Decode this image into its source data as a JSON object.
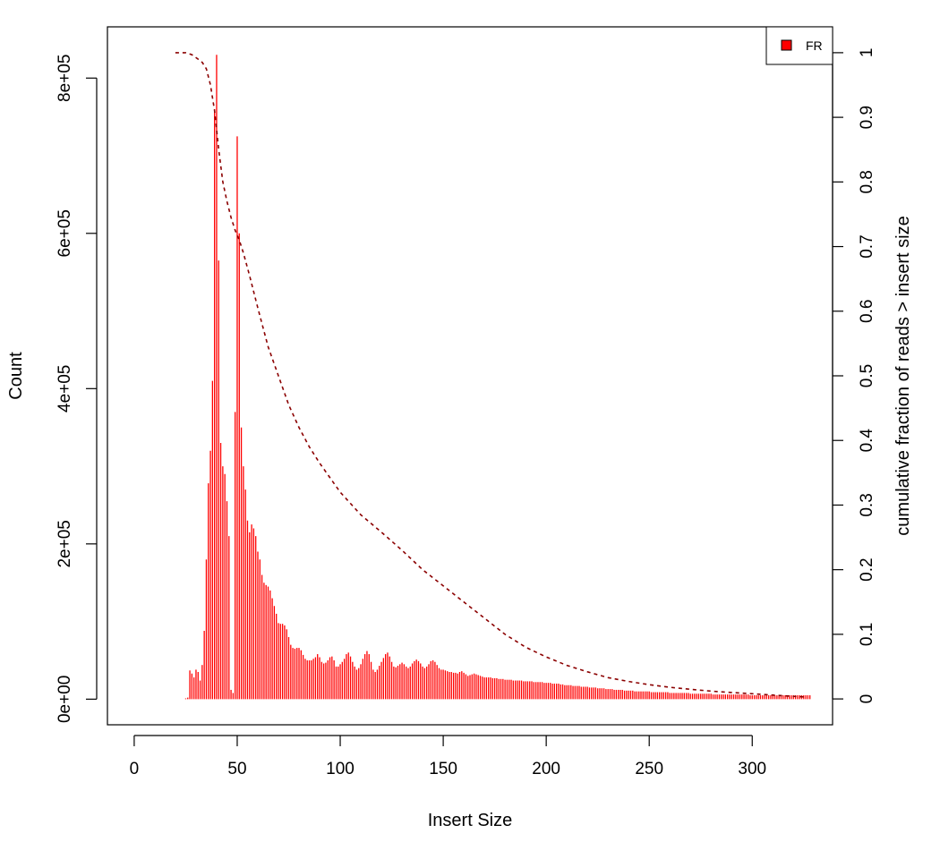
{
  "colors": {
    "bar": "#ff0000",
    "cumulative": "#8b0000",
    "axis": "#000000",
    "background": "#ffffff"
  },
  "chart_data": {
    "type": "bar",
    "xlabel": "Insert Size",
    "ylabel": "Count",
    "y2label": "cumulative fraction of reads > insert size",
    "xlim": [
      -13,
      339
    ],
    "ylim": [
      -33000,
      866000
    ],
    "y2lim": [
      -0.04,
      1.04
    ],
    "x_ticks": [
      "0",
      "50",
      "100",
      "150",
      "200",
      "250",
      "300"
    ],
    "y_ticks": [
      "0e+00",
      "2e+05",
      "4e+05",
      "6e+05",
      "8e+05"
    ],
    "y2_ticks": [
      "0",
      "0.1",
      "0.2",
      "0.3",
      "0.4",
      "0.5",
      "0.6",
      "0.7",
      "0.8",
      "0.9",
      "1"
    ],
    "legend": {
      "entries": [
        "FR"
      ],
      "position": "top-right"
    },
    "grid": false,
    "series": [
      {
        "name": "FR",
        "type": "bar",
        "x_start": 20,
        "values": [
          0,
          0,
          0,
          0,
          0,
          1000,
          2000,
          37000,
          33000,
          28000,
          38000,
          35000,
          24000,
          44000,
          88000,
          180000,
          278000,
          320000,
          410000,
          760000,
          830000,
          565000,
          330000,
          300000,
          290000,
          255000,
          210000,
          12000,
          8000,
          370000,
          725000,
          600000,
          350000,
          300000,
          270000,
          230000,
          215000,
          225000,
          220000,
          210000,
          190000,
          180000,
          160000,
          150000,
          147000,
          145000,
          140000,
          130000,
          120000,
          110000,
          98000,
          97000,
          97000,
          95000,
          90000,
          80000,
          70000,
          66000,
          65000,
          66000,
          66000,
          63000,
          57000,
          52000,
          50000,
          50000,
          50000,
          52000,
          54000,
          58000,
          54000,
          48000,
          46000,
          47000,
          50000,
          54000,
          55000,
          50000,
          42000,
          42000,
          45000,
          48000,
          52000,
          58000,
          60000,
          55000,
          48000,
          42000,
          38000,
          40000,
          45000,
          52000,
          58000,
          62000,
          58000,
          48000,
          38000,
          35000,
          38000,
          43000,
          48000,
          53000,
          58000,
          60000,
          55000,
          48000,
          42000,
          41000,
          43000,
          45000,
          47000,
          45000,
          42000,
          40000,
          42000,
          46000,
          49000,
          51000,
          49000,
          46000,
          42000,
          40000,
          42000,
          45000,
          49000,
          50000,
          48000,
          44000,
          40000,
          38000,
          38000,
          37000,
          36000,
          35000,
          35000,
          34000,
          34000,
          33000,
          35000,
          36000,
          34000,
          32000,
          30000,
          31000,
          32000,
          33000,
          32000,
          31000,
          30000,
          29000,
          28000,
          28000,
          28000,
          28000,
          27000,
          27000,
          27000,
          26000,
          26000,
          26000,
          25000,
          25000,
          25000,
          25000,
          24000,
          24000,
          24000,
          24000,
          24000,
          23000,
          23000,
          23000,
          23000,
          23000,
          22000,
          22000,
          22000,
          22000,
          22000,
          21000,
          21000,
          21000,
          21000,
          20000,
          20000,
          20000,
          20000,
          19000,
          19000,
          18000,
          18000,
          18000,
          18000,
          17000,
          17000,
          17000,
          17000,
          16000,
          16000,
          16000,
          16000,
          15000,
          15000,
          15000,
          15000,
          14000,
          14000,
          14000,
          14000,
          13000,
          13000,
          13000,
          13000,
          12000,
          12000,
          12000,
          12000,
          12000,
          11000,
          11000,
          11000,
          11000,
          11000,
          10000,
          10000,
          10000,
          10000,
          10000,
          10000,
          10000,
          10000,
          9000,
          9000,
          9000,
          9000,
          9000,
          9000,
          9000,
          9000,
          9000,
          8000,
          8000,
          8000,
          8000,
          8000,
          8000,
          8000,
          8000,
          8000,
          8000,
          7000,
          7000,
          7000,
          7000,
          7000,
          7000,
          7000,
          7000,
          7000,
          7000,
          7000,
          6000,
          6000,
          6000,
          6000,
          6000,
          6000,
          6000,
          6000,
          6000,
          6000,
          6000,
          6000,
          6000,
          6000,
          6000,
          6000,
          6000,
          6000,
          5000,
          5000,
          5000,
          5000,
          5000,
          5000,
          5000,
          5000,
          5000,
          5000,
          5000,
          5000,
          5000,
          5000,
          5000,
          5000,
          5000,
          5000,
          5000,
          5000,
          5000,
          5000,
          5000,
          5000,
          5000,
          5000,
          5000,
          5000,
          5000,
          5000
        ]
      },
      {
        "name": "cumulative fraction of reads > insert size",
        "type": "line",
        "axis": "right",
        "style": "dashed",
        "x": [
          20,
          23,
          25,
          28,
          31,
          33,
          35,
          37,
          39,
          41,
          43,
          45,
          47,
          49,
          51,
          53,
          56,
          60,
          65,
          70,
          75,
          80,
          85,
          90,
          100,
          110,
          120,
          130,
          140,
          150,
          160,
          170,
          180,
          190,
          200,
          210,
          220,
          230,
          240,
          250,
          260,
          270,
          280,
          290,
          300,
          310,
          320,
          326
        ],
        "y": [
          1.0,
          1.0,
          1.0,
          0.997,
          0.99,
          0.985,
          0.975,
          0.95,
          0.91,
          0.85,
          0.8,
          0.77,
          0.745,
          0.725,
          0.71,
          0.69,
          0.655,
          0.605,
          0.545,
          0.5,
          0.455,
          0.42,
          0.39,
          0.365,
          0.32,
          0.285,
          0.258,
          0.23,
          0.2,
          0.175,
          0.15,
          0.125,
          0.1,
          0.08,
          0.065,
          0.052,
          0.042,
          0.033,
          0.027,
          0.022,
          0.018,
          0.015,
          0.012,
          0.01,
          0.008,
          0.006,
          0.004,
          0.003
        ]
      }
    ]
  }
}
